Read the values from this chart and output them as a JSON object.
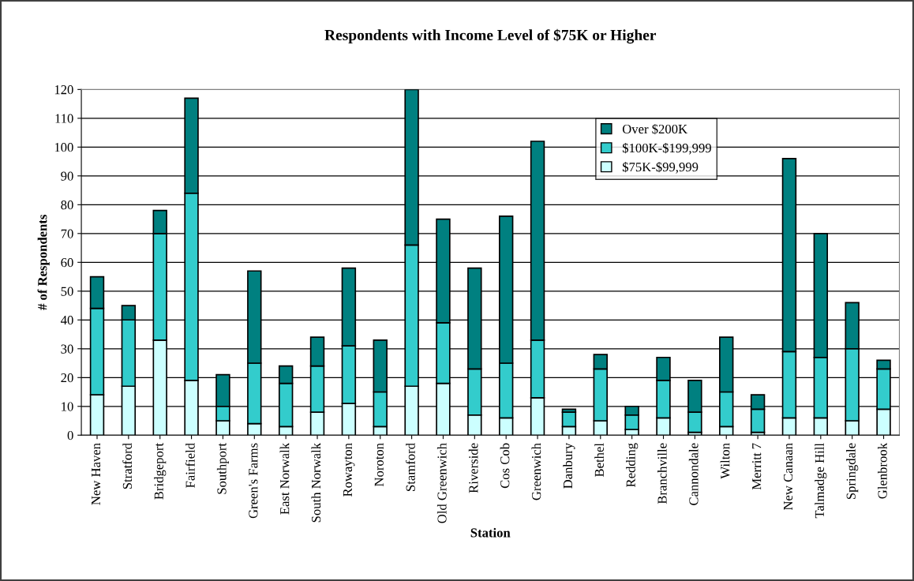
{
  "chart_data": {
    "type": "bar",
    "title": "Respondents with Income Level of $75K or Higher",
    "xlabel": "Station",
    "ylabel": "# of Respondents",
    "categories": [
      "New Haven",
      "Stratford",
      "Bridgeport",
      "Fairfield",
      "Southport",
      "Green's Farms",
      "East Norwalk",
      "South Norwalk",
      "Rowayton",
      "Noroton",
      "Stamford",
      "Old Greenwich",
      "Riverside",
      "Cos Cob",
      "Greenwich",
      "Danbury",
      "Bethel",
      "Redding",
      "Branchville",
      "Cannondale",
      "Wilton",
      "Merritt 7",
      "New Canaan",
      "Talmadge Hill",
      "Springdale",
      "Glenbrook"
    ],
    "stacked": true,
    "series": [
      {
        "name": "$75K-$99,999",
        "color": "#ccffff",
        "values": [
          14,
          17,
          33,
          19,
          5,
          4,
          3,
          8,
          11,
          3,
          17,
          18,
          7,
          6,
          13,
          3,
          5,
          2,
          6,
          1,
          3,
          1,
          6,
          6,
          5,
          9
        ]
      },
      {
        "name": "$100K-$199,999",
        "color": "#33cccc",
        "values": [
          30,
          23,
          37,
          65,
          5,
          21,
          15,
          16,
          20,
          12,
          49,
          21,
          16,
          19,
          20,
          5,
          18,
          5,
          13,
          7,
          12,
          8,
          23,
          21,
          25,
          14
        ]
      },
      {
        "name": "Over $200K",
        "color": "#008080",
        "values": [
          11,
          5,
          8,
          33,
          11,
          32,
          6,
          10,
          27,
          18,
          54,
          36,
          35,
          51,
          69,
          1,
          5,
          3,
          8,
          11,
          19,
          5,
          67,
          43,
          16,
          3
        ]
      }
    ],
    "ylim": [
      0,
      120
    ],
    "yticks": [
      0,
      10,
      20,
      30,
      40,
      50,
      60,
      70,
      80,
      90,
      100,
      110,
      120
    ],
    "grid": "y",
    "legend": "top right"
  }
}
